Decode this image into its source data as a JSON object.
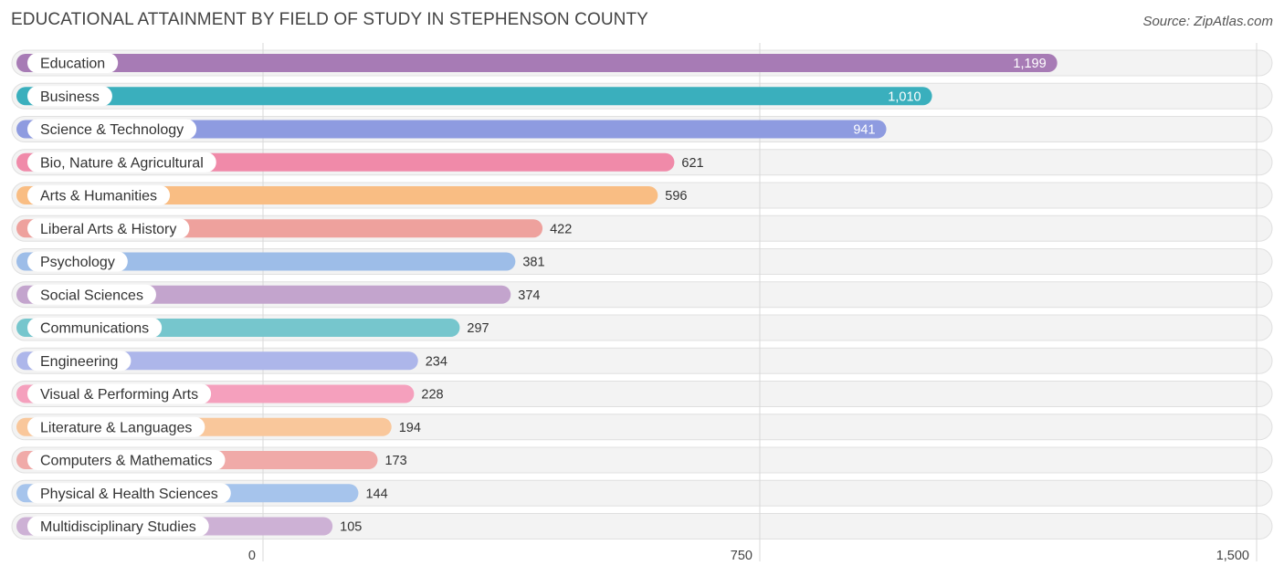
{
  "header": {
    "title": "EDUCATIONAL ATTAINMENT BY FIELD OF STUDY IN STEPHENSON COUNTY",
    "source": "Source: ZipAtlas.com"
  },
  "chart_data": {
    "type": "bar",
    "orientation": "horizontal",
    "title": "EDUCATIONAL ATTAINMENT BY FIELD OF STUDY IN STEPHENSON COUNTY",
    "xlabel": "",
    "ylabel": "",
    "xlim": [
      0,
      1500
    ],
    "ticks": [
      {
        "value": 0,
        "label": "0"
      },
      {
        "value": 750,
        "label": "750"
      },
      {
        "value": 1500,
        "label": "1,500"
      }
    ],
    "categories": [
      "Education",
      "Business",
      "Science & Technology",
      "Bio, Nature & Agricultural",
      "Arts & Humanities",
      "Liberal Arts & History",
      "Psychology",
      "Social Sciences",
      "Communications",
      "Engineering",
      "Visual & Performing Arts",
      "Literature & Languages",
      "Computers & Mathematics",
      "Physical & Health Sciences",
      "Multidisciplinary Studies"
    ],
    "values": [
      1199,
      1010,
      941,
      621,
      596,
      422,
      381,
      374,
      297,
      234,
      228,
      194,
      173,
      144,
      105
    ],
    "value_labels": [
      "1,199",
      "1,010",
      "941",
      "621",
      "596",
      "422",
      "381",
      "374",
      "297",
      "234",
      "228",
      "194",
      "173",
      "144",
      "105"
    ],
    "colors": [
      "#a77bb5",
      "#3aafbd",
      "#8e9be0",
      "#f08aa9",
      "#f9bd83",
      "#eea19d",
      "#9dbde8",
      "#c3a4cd",
      "#76c6cd",
      "#adb6ea",
      "#f5a0bd",
      "#f9c79b",
      "#f0aaa8",
      "#a6c4ec",
      "#cdb1d5"
    ]
  }
}
